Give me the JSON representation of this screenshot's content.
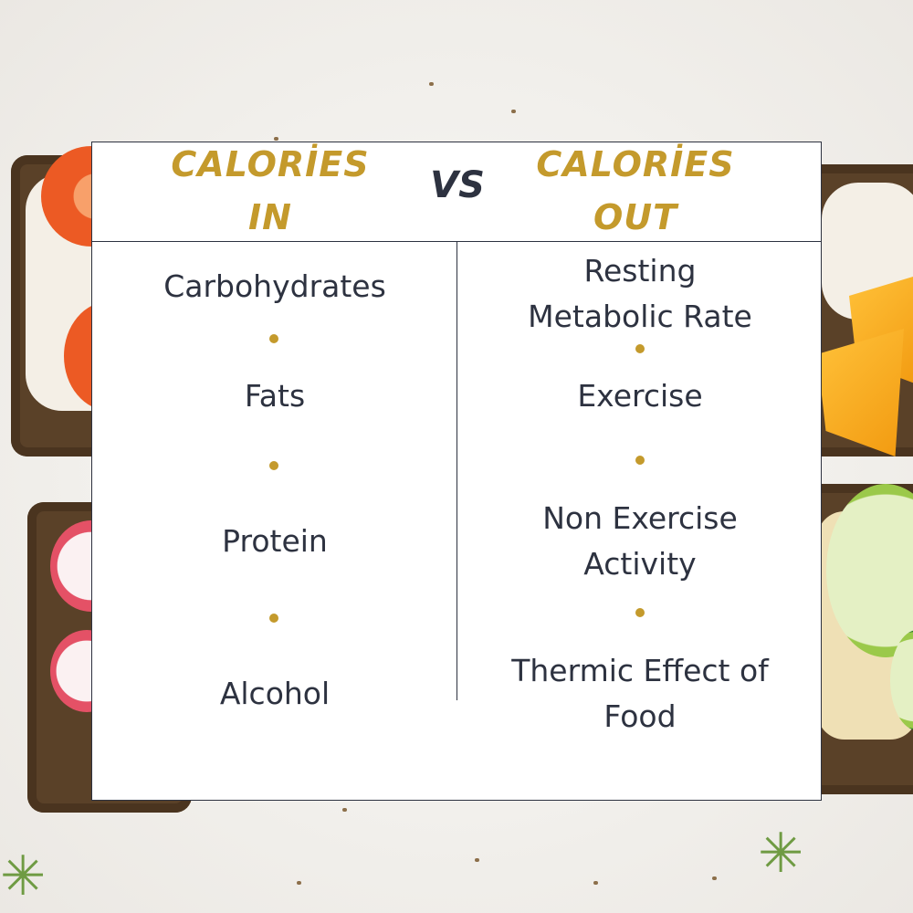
{
  "header": {
    "left_title_line1": "CALORİES",
    "left_title_line2": "IN",
    "vs": "VS",
    "right_title_line1": "CALORİES",
    "right_title_line2": "OUT"
  },
  "calories_in": {
    "items": [
      "Carbohydrates",
      "Fats",
      "Protein",
      "Alcohol"
    ]
  },
  "calories_out": {
    "items": [
      {
        "line1": "Resting",
        "line2": "Metabolic Rate"
      },
      {
        "line1": "Exercise",
        "line2": ""
      },
      {
        "line1": "Non Exercise",
        "line2": "Activity"
      },
      {
        "line1": "Thermic Effect of",
        "line2": "Food"
      }
    ]
  },
  "colors": {
    "accent_gold": "#c49a2c",
    "text_navy": "#2d3240",
    "card_bg": "#ffffff"
  }
}
